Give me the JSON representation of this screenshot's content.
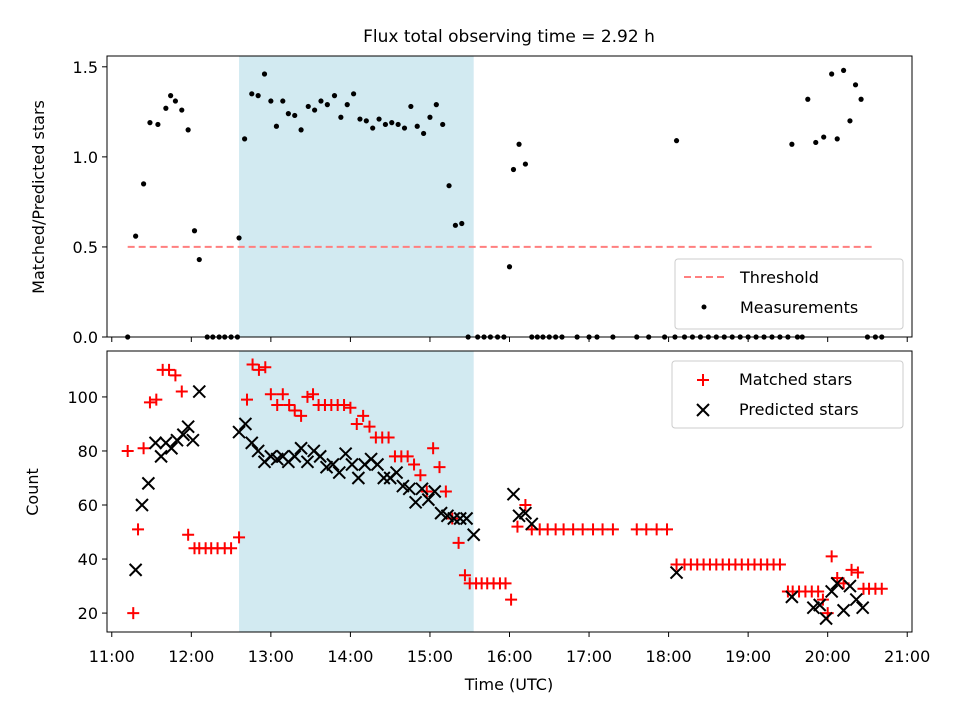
{
  "chart_data": [
    {
      "type": "scatter",
      "title": "Flux total observing time = 2.92 h",
      "xlabel": "",
      "ylabel": "Matched/Predicted stars",
      "xlim": [
        10.94,
        21.06
      ],
      "ylim": [
        0,
        1.56
      ],
      "yticks": [
        0.0,
        0.5,
        1.0,
        1.5
      ],
      "ytick_labels": [
        "0.0",
        "0.5",
        "1.0",
        "1.5"
      ],
      "highlight_span": [
        12.6,
        15.55
      ],
      "legend_position": "lower-right",
      "series": [
        {
          "name": "Threshold",
          "kind": "dashed-line",
          "color": "#ff7f7f",
          "x": [
            11.2,
            20.6
          ],
          "y": [
            0.5,
            0.5
          ]
        },
        {
          "name": "Measurements",
          "kind": "dots",
          "color": "#000000",
          "x": [
            11.2,
            11.3,
            11.4,
            11.48,
            11.58,
            11.68,
            11.74,
            11.8,
            11.88,
            11.96,
            12.04,
            12.1,
            12.2,
            12.27,
            12.35,
            12.42,
            12.5,
            12.58,
            12.6,
            12.67,
            12.76,
            12.84,
            12.92,
            13.0,
            13.07,
            13.15,
            13.22,
            13.3,
            13.38,
            13.47,
            13.55,
            13.63,
            13.71,
            13.8,
            13.88,
            13.96,
            14.04,
            14.12,
            14.2,
            14.28,
            14.36,
            14.44,
            14.52,
            14.6,
            14.68,
            14.76,
            14.84,
            14.92,
            15.0,
            15.08,
            15.16,
            15.24,
            15.32,
            15.4,
            15.48,
            15.6,
            15.68,
            15.76,
            15.85,
            15.93,
            16.0,
            16.05,
            16.12,
            16.2,
            16.28,
            16.35,
            16.42,
            16.5,
            16.58,
            16.66,
            16.85,
            17.0,
            17.1,
            17.3,
            17.6,
            17.75,
            17.95,
            18.08,
            18.1,
            18.2,
            18.3,
            18.4,
            18.5,
            18.6,
            18.7,
            18.8,
            18.9,
            19.0,
            19.1,
            19.2,
            19.3,
            19.4,
            19.5,
            19.55,
            19.62,
            19.68,
            19.75,
            19.85,
            19.95,
            20.05,
            20.12,
            20.2,
            20.28,
            20.35,
            20.42,
            20.5,
            20.6,
            20.68
          ],
          "y": [
            0,
            0.56,
            0.85,
            1.19,
            1.18,
            1.27,
            1.34,
            1.31,
            1.26,
            1.15,
            0.59,
            0.43,
            0,
            0,
            0,
            0,
            0,
            0,
            0.55,
            1.1,
            1.35,
            1.34,
            1.46,
            1.31,
            1.17,
            1.31,
            1.24,
            1.23,
            1.15,
            1.28,
            1.26,
            1.31,
            1.29,
            1.34,
            1.22,
            1.29,
            1.35,
            1.21,
            1.2,
            1.16,
            1.21,
            1.18,
            1.19,
            1.18,
            1.16,
            1.28,
            1.17,
            1.13,
            1.22,
            1.29,
            1.18,
            0.84,
            0.62,
            0.63,
            0,
            0,
            0,
            0,
            0,
            0,
            0.39,
            0.93,
            1.07,
            0.96,
            0,
            0,
            0,
            0,
            0,
            0,
            0,
            0,
            0,
            0,
            0,
            0,
            0,
            0,
            1.09,
            0,
            0,
            0,
            0,
            0,
            0,
            0,
            0,
            0,
            0,
            0,
            0,
            0,
            0,
            1.07,
            0,
            0,
            1.32,
            1.08,
            1.11,
            1.46,
            1.1,
            1.48,
            1.2,
            1.4,
            1.32,
            0,
            0,
            0
          ]
        }
      ]
    },
    {
      "type": "scatter",
      "title": "",
      "xlabel": "Time (UTC)",
      "ylabel": "Count",
      "xlim": [
        10.94,
        21.06
      ],
      "ylim": [
        13,
        117
      ],
      "yticks": [
        20,
        40,
        60,
        80,
        100
      ],
      "ytick_labels": [
        "20",
        "40",
        "60",
        "80",
        "100"
      ],
      "xticks": [
        11,
        12,
        13,
        14,
        15,
        16,
        17,
        18,
        19,
        20,
        21
      ],
      "xtick_labels": [
        "11:00",
        "12:00",
        "13:00",
        "14:00",
        "15:00",
        "16:00",
        "17:00",
        "18:00",
        "19:00",
        "20:00",
        "21:00"
      ],
      "highlight_span": [
        12.6,
        15.55
      ],
      "legend_position": "upper-right",
      "series": [
        {
          "name": "Matched stars",
          "kind": "plus",
          "color": "#ff0000",
          "x": [
            11.2,
            11.27,
            11.33,
            11.4,
            11.48,
            11.56,
            11.64,
            11.72,
            11.8,
            11.88,
            11.96,
            12.04,
            12.1,
            12.18,
            12.25,
            12.33,
            12.42,
            12.5,
            12.6,
            12.7,
            12.77,
            12.85,
            12.93,
            13.0,
            13.08,
            13.15,
            13.23,
            13.3,
            13.38,
            13.46,
            13.53,
            13.6,
            13.68,
            13.76,
            13.84,
            13.92,
            14.0,
            14.08,
            14.16,
            14.24,
            14.32,
            14.4,
            14.48,
            14.56,
            14.64,
            14.72,
            14.8,
            14.88,
            14.96,
            15.04,
            15.12,
            15.2,
            15.28,
            15.36,
            15.44,
            15.5,
            15.58,
            15.65,
            15.72,
            15.8,
            15.88,
            15.95,
            16.02,
            16.1,
            16.2,
            16.28,
            16.38,
            16.48,
            16.58,
            16.68,
            16.8,
            16.92,
            17.05,
            17.17,
            17.3,
            17.6,
            17.72,
            17.85,
            17.98,
            18.1,
            18.2,
            18.28,
            18.36,
            18.44,
            18.52,
            18.6,
            18.68,
            18.76,
            18.84,
            18.92,
            19.0,
            19.08,
            19.16,
            19.24,
            19.32,
            19.4,
            19.5,
            19.56,
            19.64,
            19.72,
            19.8,
            19.88,
            19.94,
            20.0,
            20.05,
            20.12,
            20.2,
            20.3,
            20.38,
            20.45,
            20.52,
            20.6,
            20.68
          ],
          "y": [
            80,
            20,
            51,
            81,
            98,
            99,
            110,
            110,
            108,
            102,
            49,
            44,
            44,
            44,
            44,
            44,
            44,
            44,
            48,
            99,
            112,
            110,
            111,
            101,
            97,
            101,
            97,
            95,
            93,
            100,
            101,
            97,
            97,
            97,
            97,
            97,
            96,
            90,
            93,
            89,
            85,
            85,
            85,
            78,
            78,
            78,
            75,
            71,
            65,
            81,
            74,
            65,
            55,
            46,
            34,
            31,
            31,
            31,
            31,
            31,
            31,
            31,
            25,
            52,
            60,
            51,
            51,
            51,
            51,
            51,
            51,
            51,
            51,
            51,
            51,
            51,
            51,
            51,
            51,
            38,
            38,
            38,
            38,
            38,
            38,
            38,
            38,
            38,
            38,
            38,
            38,
            38,
            38,
            38,
            38,
            38,
            28,
            28,
            28,
            28,
            28,
            28,
            25,
            20,
            41,
            33,
            31,
            36,
            35,
            29,
            29,
            29,
            29
          ]
        },
        {
          "name": "Predicted stars",
          "kind": "cross",
          "color": "#000000",
          "x": [
            11.3,
            11.38,
            11.46,
            11.55,
            11.62,
            11.68,
            11.75,
            11.82,
            11.9,
            11.96,
            12.02,
            12.1,
            12.6,
            12.68,
            12.76,
            12.84,
            12.92,
            13.0,
            13.08,
            13.15,
            13.22,
            13.3,
            13.38,
            13.46,
            13.54,
            13.62,
            13.7,
            13.78,
            13.86,
            13.94,
            14.02,
            14.1,
            14.18,
            14.26,
            14.34,
            14.42,
            14.5,
            14.58,
            14.66,
            14.74,
            14.82,
            14.9,
            14.98,
            15.06,
            15.14,
            15.22,
            15.3,
            15.38,
            15.46,
            15.55,
            16.05,
            16.12,
            16.2,
            16.28,
            18.1,
            19.55,
            19.82,
            19.9,
            19.98,
            20.05,
            20.12,
            20.2,
            20.28,
            20.36,
            20.44
          ],
          "y": [
            36,
            60,
            68,
            83,
            78,
            83,
            81,
            84,
            86,
            89,
            84,
            102,
            87,
            90,
            83,
            80,
            76,
            78,
            77,
            78,
            76,
            78,
            81,
            76,
            80,
            78,
            74,
            75,
            72,
            79,
            75,
            70,
            75,
            77,
            75,
            70,
            70,
            72,
            67,
            66,
            61,
            66,
            62,
            65,
            57,
            56,
            55,
            55,
            55,
            49,
            64,
            56,
            57,
            53,
            35,
            26,
            22,
            23,
            18,
            28,
            31,
            21,
            30,
            25,
            22
          ]
        }
      ]
    }
  ],
  "legend": {
    "top": [
      {
        "label": "Threshold",
        "icon": "dashed-line-icon"
      },
      {
        "label": "Measurements",
        "icon": "dot-icon"
      }
    ],
    "bottom": [
      {
        "label": "Matched stars",
        "icon": "plus-marker-icon"
      },
      {
        "label": "Predicted stars",
        "icon": "x-marker-icon"
      }
    ]
  },
  "colors": {
    "highlight": "#add8e6",
    "threshold": "#ff7f7f",
    "matched": "#ff0000",
    "predicted": "#000000",
    "measurement": "#000000"
  }
}
